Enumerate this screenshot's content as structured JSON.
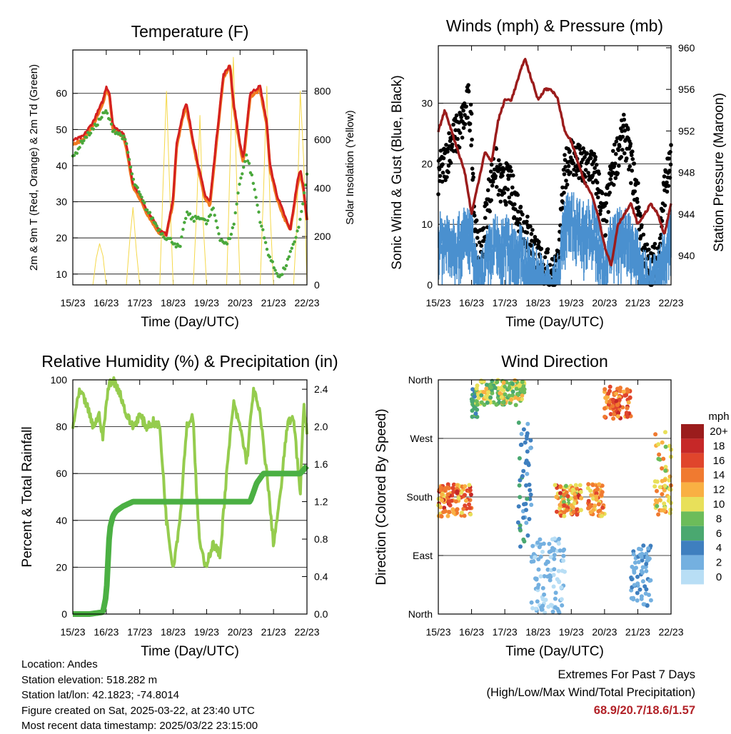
{
  "x_ticks": [
    "15/23",
    "16/23",
    "17/23",
    "18/23",
    "19/23",
    "20/23",
    "21/23",
    "22/23"
  ],
  "footer": {
    "location": "Location: Andes",
    "elevation": "Station elevation: 518.282 m",
    "latlon": "Station lat/lon: 42.1823; -74.8014",
    "created": "Figure created on Sat, 2025-03-22, at 23:40 UTC",
    "recent": "Most recent data timestamp: 2025/03/22 23:15:00"
  },
  "extremes": {
    "heading": "Extremes For Past 7 Days",
    "subheading": "(High/Low/Max Wind/Total Precipitation)",
    "values": "68.9/20.7/18.6/1.57"
  },
  "colors": {
    "temp_2m": "#d42020",
    "temp_9m": "#f07a20",
    "dewpoint": "#4aa83c",
    "solar": "#f5d84a",
    "wind": "#4a90cf",
    "gust": "#000000",
    "pressure": "#9b1c1c",
    "rh": "#95cc4e",
    "precip": "#4bb043"
  },
  "chart_data": [
    {
      "id": "temperature",
      "type": "line",
      "title": "Temperature (F)",
      "xlabel": "Time (Day/UTC)",
      "ylabel": "2m & 9m T (Red, Orange) & 2m Td (Green)",
      "ylabel_right": "Solar Insolation (Yellow)",
      "x_range": [
        0,
        7
      ],
      "ylim": [
        7,
        72
      ],
      "yticks": [
        10,
        20,
        30,
        40,
        50,
        60
      ],
      "ylim_right": [
        0,
        970
      ],
      "yticks_right": [
        0,
        200,
        400,
        600,
        800
      ],
      "series": [
        {
          "name": "2m T",
          "x": [
            0,
            0.3,
            0.6,
            0.9,
            1.0,
            1.1,
            1.2,
            1.5,
            1.6,
            1.8,
            2.0,
            2.2,
            2.4,
            2.6,
            2.8,
            3.0,
            3.1,
            3.3,
            3.4,
            3.6,
            3.8,
            3.95,
            4.1,
            4.3,
            4.5,
            4.7,
            4.8,
            5.0,
            5.1,
            5.3,
            5.6,
            5.8,
            5.9,
            6.1,
            6.3,
            6.5,
            6.7,
            6.8,
            6.9,
            7.0
          ],
          "values": [
            47,
            48,
            52,
            58,
            62,
            60,
            51,
            49,
            46,
            35,
            32,
            28,
            25,
            22,
            21,
            31,
            46,
            55,
            57,
            47,
            38,
            32,
            30,
            48,
            65,
            68,
            58,
            46,
            42,
            60,
            62,
            52,
            40,
            32,
            27,
            22,
            35,
            39,
            34,
            25
          ]
        },
        {
          "name": "9m T",
          "x": [
            0,
            0.3,
            0.6,
            0.9,
            1.0,
            1.1,
            1.2,
            1.5,
            1.6,
            1.8,
            2.0,
            2.2,
            2.4,
            2.6,
            2.8,
            3.0,
            3.1,
            3.3,
            3.4,
            3.6,
            3.8,
            3.95,
            4.1,
            4.3,
            4.5,
            4.7,
            4.8,
            5.0,
            5.1,
            5.3,
            5.6,
            5.8,
            5.9,
            6.1,
            6.3,
            6.5,
            6.7,
            6.8,
            6.9,
            7.0
          ],
          "values": [
            46,
            47,
            51,
            57,
            61,
            59,
            50,
            48,
            45,
            34,
            31,
            27,
            24,
            21,
            21,
            30,
            45,
            54,
            56,
            46,
            37,
            31,
            29,
            47,
            64,
            68,
            57,
            45,
            41,
            59,
            61,
            51,
            39,
            31,
            26,
            22,
            34,
            38,
            33,
            25
          ]
        },
        {
          "name": "2m Td",
          "x": [
            0,
            0.3,
            0.6,
            0.9,
            1.0,
            1.2,
            1.5,
            1.6,
            1.8,
            2.0,
            2.2,
            2.4,
            2.6,
            2.8,
            3.0,
            3.2,
            3.4,
            3.6,
            3.8,
            4.0,
            4.2,
            4.4,
            4.6,
            4.8,
            5.0,
            5.2,
            5.4,
            5.6,
            5.8,
            6.0,
            6.2,
            6.4,
            6.6,
            6.8,
            7.0
          ],
          "values": [
            42,
            47,
            50,
            54,
            55,
            50,
            48,
            46,
            36,
            32,
            28,
            25,
            22,
            20,
            19,
            17,
            27,
            25,
            26,
            24,
            28,
            20,
            18,
            23,
            36,
            43,
            35,
            25,
            17,
            12,
            9,
            13,
            18,
            25,
            37
          ]
        },
        {
          "name": "Solar",
          "x": [
            0,
            0.6,
            0.7,
            0.8,
            0.9,
            1.0,
            1.6,
            1.7,
            1.8,
            1.9,
            2.0,
            2.6,
            2.7,
            2.8,
            2.9,
            3.0,
            3.6,
            3.7,
            3.8,
            3.9,
            4.0,
            4.6,
            4.7,
            4.8,
            4.9,
            5.0,
            5.6,
            5.7,
            5.8,
            5.9,
            6.0,
            6.6,
            6.7,
            6.8,
            6.9,
            7.0
          ],
          "values": [
            0,
            0,
            110,
            170,
            120,
            0,
            0,
            180,
            320,
            140,
            0,
            0,
            420,
            800,
            380,
            0,
            0,
            300,
            700,
            250,
            0,
            0,
            500,
            940,
            420,
            0,
            0,
            380,
            820,
            300,
            0,
            0,
            260,
            800,
            520,
            0
          ]
        }
      ]
    },
    {
      "id": "winds",
      "type": "line",
      "title": "Winds (mph) & Pressure (mb)",
      "xlabel": "Time (Day/UTC)",
      "ylabel": "Sonic Wind & Gust (Blue, Black)",
      "ylabel_right": "Station Pressure (Maroon)",
      "x_range": [
        0,
        7
      ],
      "ylim": [
        0,
        39.5
      ],
      "yticks": [
        0,
        10,
        20,
        30
      ],
      "ylim_right": [
        937.2,
        960.2
      ],
      "yticks_right": [
        940,
        944,
        948,
        952,
        956,
        960
      ],
      "series": [
        {
          "name": "Wind",
          "x": [
            0,
            0.3,
            0.6,
            0.9,
            1.0,
            1.1,
            1.2,
            1.3,
            1.5,
            1.7,
            1.9,
            2.1,
            2.3,
            2.5,
            2.7,
            2.9,
            3.0,
            3.2,
            3.4,
            3.6,
            3.8,
            3.95,
            4.2,
            4.4,
            4.6,
            4.8,
            5.0,
            5.2,
            5.4,
            5.6,
            5.8,
            6.0,
            6.2,
            6.4,
            6.6,
            6.8,
            7.0
          ],
          "values": [
            9,
            10,
            9,
            11,
            10,
            5,
            2,
            3,
            7,
            9,
            8,
            9,
            8,
            7,
            5,
            4,
            3,
            2,
            1,
            3,
            12,
            13,
            12,
            11,
            12,
            9,
            5,
            9,
            10,
            10,
            9,
            6,
            3,
            2,
            3,
            8,
            10
          ]
        },
        {
          "name": "Gust",
          "x": [
            0,
            0.2,
            0.4,
            0.6,
            0.8,
            0.9,
            1.0,
            1.1,
            1.2,
            1.3,
            1.5,
            1.7,
            1.9,
            2.1,
            2.3,
            2.5,
            2.7,
            2.9,
            3.0,
            3.2,
            3.4,
            3.6,
            3.8,
            3.95,
            4.2,
            4.4,
            4.6,
            4.8,
            5.0,
            5.2,
            5.4,
            5.6,
            5.8,
            6.0,
            6.2,
            6.4,
            6.6,
            6.8,
            7.0
          ],
          "values": [
            18,
            20,
            24,
            25,
            28,
            30,
            26,
            10,
            5,
            6,
            14,
            20,
            16,
            17,
            14,
            11,
            8,
            6,
            4,
            3,
            2,
            3,
            18,
            22,
            20,
            19,
            20,
            17,
            10,
            18,
            22,
            25,
            20,
            14,
            4,
            3,
            4,
            16,
            20
          ]
        },
        {
          "name": "Pressure",
          "x": [
            0,
            0.2,
            0.4,
            0.6,
            0.8,
            1.0,
            1.2,
            1.4,
            1.6,
            1.8,
            2.0,
            2.2,
            2.4,
            2.6,
            2.8,
            3.0,
            3.2,
            3.4,
            3.6,
            3.8,
            4.0,
            4.2,
            4.4,
            4.6,
            4.8,
            5.0,
            5.2,
            5.4,
            5.6,
            5.8,
            6.0,
            6.2,
            6.4,
            6.6,
            6.8,
            7.0
          ],
          "values": [
            952,
            954,
            952,
            950,
            948,
            944,
            947,
            950,
            949,
            953,
            955,
            955,
            957,
            959,
            957,
            955,
            956,
            956,
            955,
            952,
            951,
            949,
            947,
            946,
            944,
            941,
            939,
            943,
            944,
            945,
            943,
            944,
            945,
            944,
            942,
            945
          ]
        }
      ]
    },
    {
      "id": "rh",
      "type": "line",
      "title": "Relative Humidity (%) & Precipitation (in)",
      "xlabel": "Time (Day/UTC)",
      "ylabel": "Percent & Total Rainfall",
      "x_range": [
        0,
        7
      ],
      "ylim": [
        0,
        100
      ],
      "yticks": [
        0,
        20,
        40,
        60,
        80,
        100
      ],
      "ylim_right": [
        0,
        2.5
      ],
      "yticks_right": [
        0.0,
        0.4,
        0.8,
        1.2,
        1.6,
        2.0,
        2.4
      ],
      "ytick_labels_right": [
        "0.0",
        "0.4",
        "0.8",
        "1.2",
        "1.6",
        "2.0",
        "2.4"
      ],
      "series": [
        {
          "name": "RH",
          "x": [
            0,
            0.2,
            0.4,
            0.6,
            0.8,
            0.9,
            1.0,
            1.1,
            1.2,
            1.4,
            1.6,
            1.8,
            2.0,
            2.2,
            2.4,
            2.6,
            2.8,
            3.0,
            3.2,
            3.4,
            3.6,
            3.7,
            3.8,
            3.95,
            4.2,
            4.4,
            4.6,
            4.8,
            5.0,
            5.2,
            5.4,
            5.6,
            5.8,
            6.0,
            6.2,
            6.4,
            6.6,
            6.8,
            6.9,
            7.0
          ],
          "values": [
            80,
            95,
            90,
            80,
            85,
            75,
            90,
            99,
            100,
            95,
            85,
            80,
            85,
            80,
            82,
            80,
            40,
            20,
            40,
            80,
            85,
            50,
            30,
            20,
            30,
            25,
            60,
            90,
            80,
            65,
            96,
            85,
            60,
            30,
            50,
            80,
            85,
            50,
            90,
            78
          ]
        },
        {
          "name": "Precip",
          "x": [
            0,
            0.5,
            0.9,
            1.0,
            1.1,
            1.2,
            1.3,
            1.5,
            1.8,
            2.5,
            3.5,
            4.5,
            5.0,
            5.3,
            5.5,
            5.7,
            6.0,
            6.5,
            6.8,
            7.0
          ],
          "values": [
            0,
            0,
            0.02,
            0.2,
            0.9,
            1.05,
            1.1,
            1.15,
            1.2,
            1.2,
            1.2,
            1.2,
            1.2,
            1.2,
            1.4,
            1.5,
            1.5,
            1.5,
            1.5,
            1.58
          ]
        }
      ]
    },
    {
      "id": "winddir",
      "type": "scatter",
      "title": "Wind Direction",
      "xlabel": "Time (Day/UTC)",
      "ylabel": "Direction (Colored By Speed)",
      "x_range": [
        0,
        7
      ],
      "ylim": [
        0,
        360
      ],
      "yticks": [
        0,
        90,
        180,
        270,
        360
      ],
      "ytick_labels": [
        "North",
        "East",
        "South",
        "West",
        "North"
      ],
      "legend": {
        "title": "mph",
        "labels": [
          "20+",
          "18",
          "16",
          "14",
          "12",
          "10",
          "8",
          "6",
          "4",
          "2",
          "0"
        ],
        "colors": [
          "#9b1c1c",
          "#c62828",
          "#e0452c",
          "#f07a30",
          "#f9b043",
          "#e8e05a",
          "#6cbc5a",
          "#4aa870",
          "#3f7fbf",
          "#74b0e0",
          "#b8def5"
        ]
      },
      "clusters": [
        {
          "x0": 0.0,
          "x1": 1.0,
          "y0": 150,
          "y1": 200,
          "s0": 10,
          "s1": 18
        },
        {
          "x0": 1.0,
          "x1": 1.2,
          "y0": 300,
          "y1": 350,
          "s0": 4,
          "s1": 8
        },
        {
          "x0": 1.1,
          "x1": 2.6,
          "y0": 320,
          "y1": 360,
          "s0": 6,
          "s1": 12
        },
        {
          "x0": 2.4,
          "x1": 2.8,
          "y0": 100,
          "y1": 300,
          "s0": 2,
          "s1": 6
        },
        {
          "x0": 2.8,
          "x1": 3.8,
          "y0": 0,
          "y1": 120,
          "s0": 0,
          "s1": 3
        },
        {
          "x0": 3.5,
          "x1": 4.3,
          "y0": 150,
          "y1": 200,
          "s0": 8,
          "s1": 18
        },
        {
          "x0": 4.5,
          "x1": 5.0,
          "y0": 150,
          "y1": 200,
          "s0": 10,
          "s1": 16
        },
        {
          "x0": 5.0,
          "x1": 5.8,
          "y0": 300,
          "y1": 350,
          "s0": 12,
          "s1": 18
        },
        {
          "x0": 5.8,
          "x1": 6.4,
          "y0": 10,
          "y1": 110,
          "s0": 1,
          "s1": 4
        },
        {
          "x0": 6.5,
          "x1": 7.0,
          "y0": 150,
          "y1": 280,
          "s0": 8,
          "s1": 14
        }
      ]
    }
  ]
}
